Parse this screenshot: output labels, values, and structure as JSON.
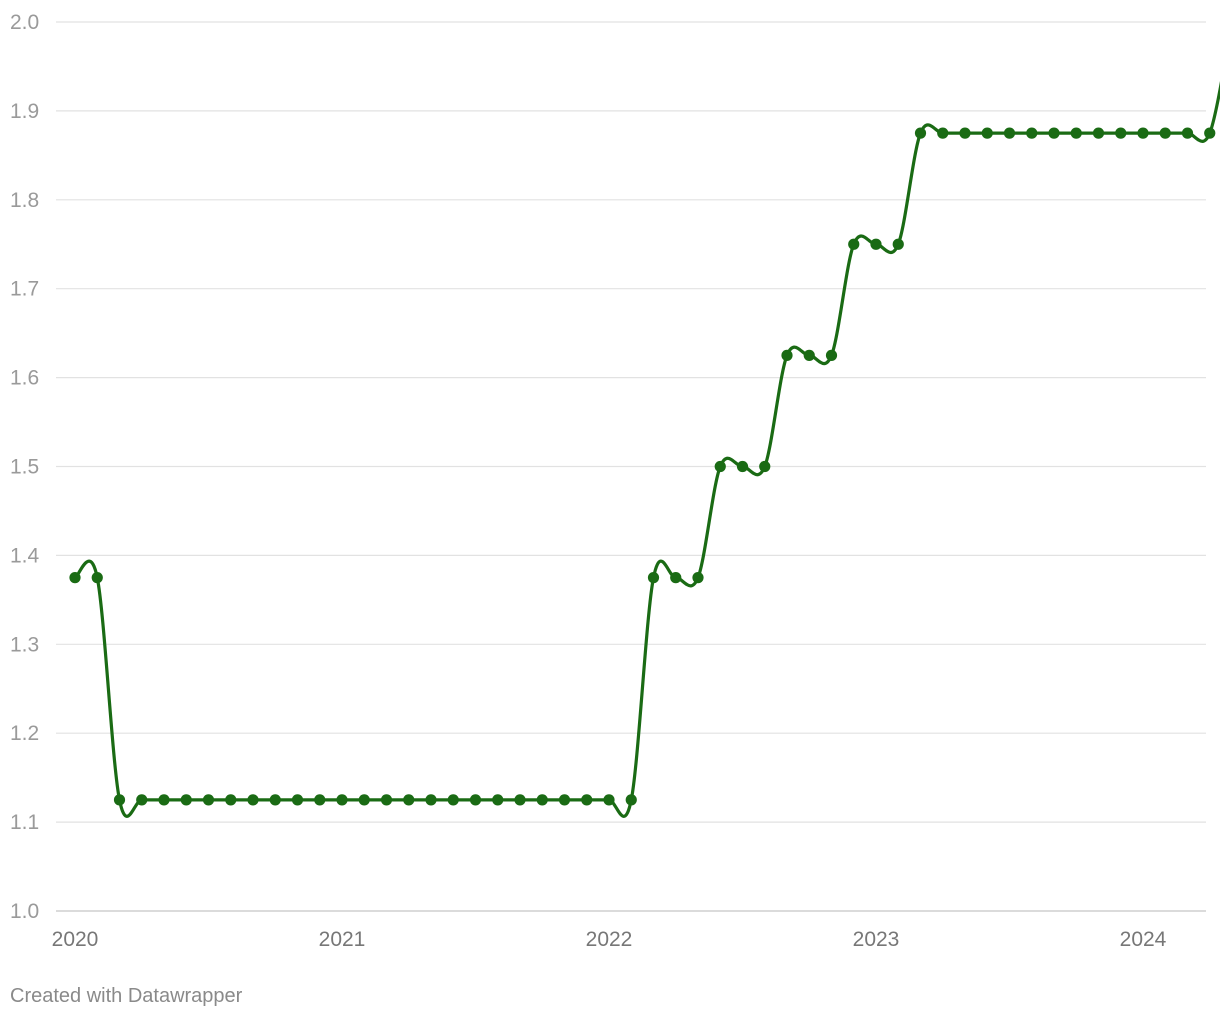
{
  "credit": "Created with Datawrapper",
  "chart_data": {
    "type": "line",
    "title": "",
    "xlabel": "",
    "ylabel": "",
    "line_color": "#1a6b14",
    "grid": true,
    "ylim": [
      1.0,
      2.0
    ],
    "y_ticks": [
      "1.0",
      "1.1",
      "1.2",
      "1.3",
      "1.4",
      "1.5",
      "1.6",
      "1.7",
      "1.8",
      "1.9",
      "2.0"
    ],
    "x_ticks": [
      "2020",
      "2021",
      "2022",
      "2023",
      "2024"
    ],
    "x_start": "2020-01",
    "series": [
      {
        "values": [
          1.375,
          1.375,
          1.125,
          1.125,
          1.125,
          1.125,
          1.125,
          1.125,
          1.125,
          1.125,
          1.125,
          1.125,
          1.125,
          1.125,
          1.125,
          1.125,
          1.125,
          1.125,
          1.125,
          1.125,
          1.125,
          1.125,
          1.125,
          1.125,
          1.125,
          1.125,
          1.375,
          1.375,
          1.375,
          1.5,
          1.5,
          1.5,
          1.625,
          1.625,
          1.625,
          1.75,
          1.75,
          1.75,
          1.875,
          1.875,
          1.875,
          1.875,
          1.875,
          1.875,
          1.875,
          1.875,
          1.875,
          1.875,
          1.875,
          1.875,
          1.875,
          1.875,
          2.0
        ]
      }
    ]
  }
}
